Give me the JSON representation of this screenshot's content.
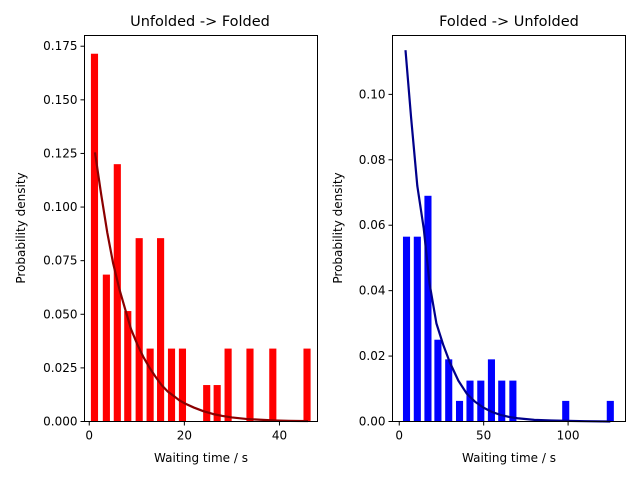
{
  "chart_data": [
    {
      "type": "bar",
      "title": "Unfolded -> Folded",
      "xlabel": "Waiting time / s",
      "ylabel": "Probability density",
      "xlim": [
        -1,
        48
      ],
      "ylim": [
        0,
        0.18
      ],
      "xticks": [
        0,
        20,
        40
      ],
      "xtick_labels": [
        "0",
        "20",
        "40"
      ],
      "yticks": [
        0,
        0.025,
        0.05,
        0.075,
        0.1,
        0.125,
        0.15,
        0.175
      ],
      "ytick_labels": [
        "0.000",
        "0.025",
        "0.050",
        "0.075",
        "0.100",
        "0.125",
        "0.150",
        "0.175"
      ],
      "bar_color": "#ff0000",
      "line_color": "#8b0000",
      "bar_width": 1.5,
      "bars": {
        "x": [
          1.1,
          3.6,
          5.9,
          8.1,
          10.5,
          12.8,
          15.0,
          17.3,
          19.6,
          24.7,
          26.9,
          29.2,
          33.8,
          38.6,
          45.8
        ],
        "values": [
          0.1715,
          0.0685,
          0.12,
          0.0515,
          0.0855,
          0.034,
          0.0855,
          0.034,
          0.034,
          0.017,
          0.017,
          0.034,
          0.034,
          0.034,
          0.034
        ]
      },
      "fit_line": {
        "x": [
          1.2,
          2.5,
          3.8,
          5.0,
          6.3,
          7.6,
          8.8,
          10.1,
          11.4,
          12.7,
          13.9,
          15.2,
          16.5,
          17.7,
          19.0,
          20.3,
          22.0,
          24.0,
          26.0,
          28.0,
          30.0,
          33.0,
          36.0,
          39.0,
          42.0,
          46.0
        ],
        "y": [
          0.1255,
          0.106,
          0.088,
          0.074,
          0.062,
          0.052,
          0.043,
          0.036,
          0.03,
          0.025,
          0.021,
          0.017,
          0.014,
          0.012,
          0.0098,
          0.0082,
          0.0065,
          0.0048,
          0.0035,
          0.0026,
          0.0019,
          0.0012,
          0.0008,
          0.0005,
          0.0003,
          0.0002
        ]
      }
    },
    {
      "type": "bar",
      "title": "Folded -> Unfolded",
      "xlabel": "Waiting time / s",
      "ylabel": "Probability density",
      "xlim": [
        -4,
        134
      ],
      "ylim": [
        0,
        0.118
      ],
      "xticks": [
        0,
        50,
        100
      ],
      "xtick_labels": [
        "0",
        "50",
        "100"
      ],
      "yticks": [
        0,
        0.02,
        0.04,
        0.06,
        0.08,
        0.1
      ],
      "ytick_labels": [
        "0.00",
        "0.02",
        "0.04",
        "0.06",
        "0.08",
        "0.10"
      ],
      "bar_color": "#0000ff",
      "line_color": "#00008b",
      "bar_width": 4.2,
      "bars": {
        "x": [
          4.3,
          10.7,
          17.0,
          22.9,
          29.3,
          35.7,
          41.9,
          48.3,
          54.6,
          60.7,
          67.3,
          98.6,
          125.0
        ],
        "values": [
          0.0565,
          0.0565,
          0.069,
          0.025,
          0.019,
          0.0063,
          0.0125,
          0.0125,
          0.019,
          0.0125,
          0.0125,
          0.0063,
          0.0063
        ]
      },
      "fit_line": {
        "x": [
          3.7,
          7.0,
          10.7,
          14.5,
          18.0,
          22.0,
          26.0,
          30.0,
          35.0,
          40.0,
          45.0,
          50.0,
          55.0,
          60.0,
          65.0,
          70.0,
          80.0,
          90.0,
          100.0,
          110.0,
          125.0
        ],
        "y": [
          0.1135,
          0.093,
          0.072,
          0.059,
          0.042,
          0.03,
          0.0235,
          0.018,
          0.0125,
          0.0085,
          0.006,
          0.0042,
          0.0029,
          0.002,
          0.0014,
          0.001,
          0.0005,
          0.0003,
          0.0002,
          0.0001,
          0.0
        ]
      }
    }
  ]
}
